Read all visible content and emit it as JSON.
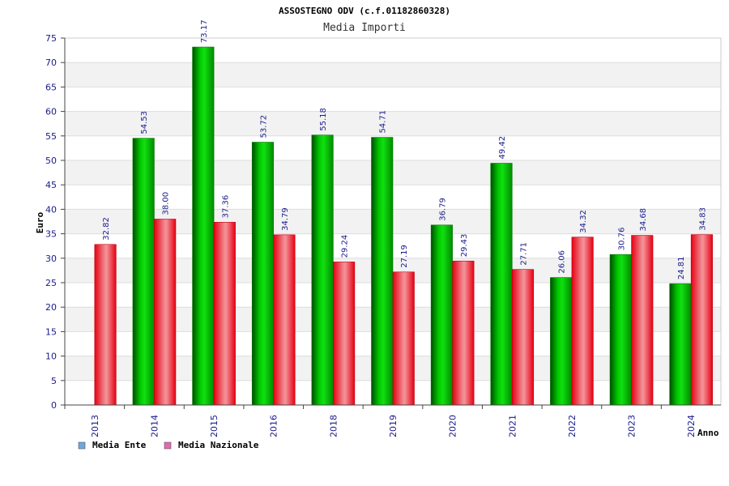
{
  "chart_data": {
    "type": "bar",
    "title": "ASSOSTEGNO ODV (c.f.01182860328)",
    "subtitle": "Media Importi",
    "xlabel": "Anno",
    "ylabel": "Euro",
    "ylim": [
      0,
      75
    ],
    "yticks": [
      0,
      5,
      10,
      15,
      20,
      25,
      30,
      35,
      40,
      45,
      50,
      55,
      60,
      65,
      70,
      75
    ],
    "grid": true,
    "legend_position": "bottom-left",
    "categories": [
      "2013",
      "2014",
      "2015",
      "2016",
      "2018",
      "2019",
      "2020",
      "2021",
      "2022",
      "2023",
      "2024"
    ],
    "series": [
      {
        "name": "Media Ente",
        "color": "#00c000",
        "legend_color": "#6fa8dc",
        "values": [
          null,
          54.53,
          73.17,
          53.72,
          55.18,
          54.71,
          36.79,
          49.42,
          26.06,
          30.76,
          24.81
        ],
        "labels": [
          "",
          "54.53",
          "73.17",
          "53.72",
          "55.18",
          "54.71",
          "36.79",
          "49.42",
          "26.06",
          "30.76",
          "24.81"
        ]
      },
      {
        "name": "Media Nazionale",
        "color": "#e8202a",
        "legend_color": "#e06cb0",
        "values": [
          32.82,
          38.0,
          37.36,
          34.79,
          29.24,
          27.19,
          29.43,
          27.71,
          34.32,
          34.68,
          34.83
        ],
        "labels": [
          "32.82",
          "38.00",
          "37.36",
          "34.79",
          "29.24",
          "27.19",
          "29.43",
          "27.71",
          "34.32",
          "34.68",
          "34.83"
        ]
      }
    ]
  }
}
